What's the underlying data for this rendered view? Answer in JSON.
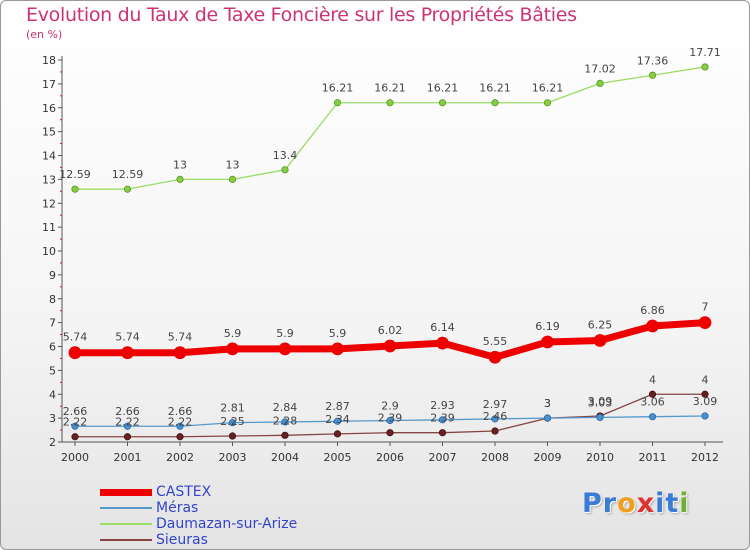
{
  "title": "Evolution du Taux de Taxe Foncière sur les Propriétés Bâties",
  "subtitle": "(en %)",
  "logo": {
    "text": "Proxiti",
    "letters": [
      "P",
      "r",
      "o",
      "x",
      "i",
      "t",
      "i"
    ],
    "colors": [
      "#3a7bd5",
      "#3a7bd5",
      "#f0a020",
      "#e03030",
      "#3a7bd5",
      "#3a7bd5",
      "#70b030"
    ]
  },
  "chart_data": {
    "type": "line",
    "x": [
      "2000",
      "2001",
      "2002",
      "2003",
      "2004",
      "2005",
      "2006",
      "2007",
      "2008",
      "2009",
      "2010",
      "2011",
      "2012"
    ],
    "ylim": [
      2,
      18
    ],
    "yticks": [
      "2",
      "3",
      "4",
      "5",
      "6",
      "7",
      "8",
      "9",
      "10",
      "11",
      "12",
      "13",
      "14",
      "15",
      "16",
      "17",
      "18"
    ],
    "grid": false,
    "legend_position": "bottom-left",
    "series": [
      {
        "name": "CASTEX",
        "color": "#ee0000",
        "values": [
          5.74,
          5.74,
          5.74,
          5.9,
          5.9,
          5.9,
          6.02,
          6.14,
          5.55,
          6.19,
          6.25,
          6.86,
          7
        ],
        "labels": [
          "5.74",
          "5.74",
          "5.74",
          "5.9",
          "5.9",
          "5.9",
          "6.02",
          "6.14",
          "5.55",
          "6.19",
          "6.25",
          "6.86",
          "7"
        ]
      },
      {
        "name": "Méras",
        "color": "#5599cc",
        "values": [
          2.66,
          2.66,
          2.66,
          2.81,
          2.84,
          2.87,
          2.9,
          2.93,
          2.97,
          3,
          3.03,
          3.06,
          3.09
        ],
        "labels": [
          "2.66",
          "2.66",
          "2.66",
          "2.81",
          "2.84",
          "2.87",
          "2.9",
          "2.93",
          "2.97",
          "3",
          "3.03",
          "3.06",
          "3.09"
        ]
      },
      {
        "name": "Daumazan-sur-Arize",
        "color": "#99dd66",
        "values": [
          12.59,
          12.59,
          13,
          13,
          13.4,
          16.21,
          16.21,
          16.21,
          16.21,
          16.21,
          17.02,
          17.36,
          17.71
        ],
        "labels": [
          "12.59",
          "12.59",
          "13",
          "13",
          "13.4",
          "16.21",
          "16.21",
          "16.21",
          "16.21",
          "16.21",
          "17.02",
          "17.36",
          "17.71"
        ]
      },
      {
        "name": "Sieuras",
        "color": "#884444",
        "values": [
          2.22,
          2.22,
          2.22,
          2.25,
          2.28,
          2.34,
          2.39,
          2.39,
          2.46,
          3,
          3.09,
          4,
          4
        ],
        "labels": [
          "2.22",
          "2.22",
          "2.22",
          "2.25",
          "2.28",
          "2.34",
          "2.39",
          "2.39",
          "2.46",
          "3",
          "3.09",
          "4",
          "4"
        ]
      }
    ]
  }
}
